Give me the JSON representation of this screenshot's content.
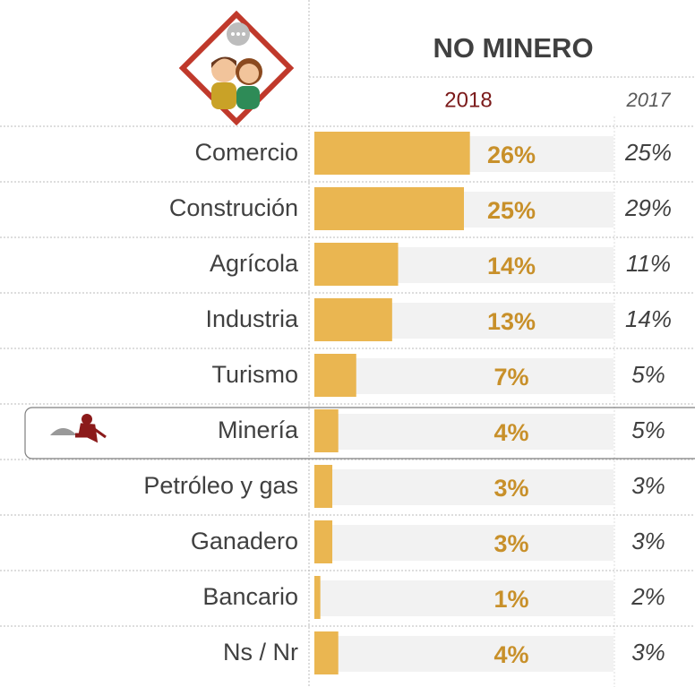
{
  "chart_data": {
    "type": "bar",
    "orientation": "horizontal",
    "title": "NO MINERO",
    "categories": [
      "Comercio",
      "Construción",
      "Agrícola",
      "Industria",
      "Turismo",
      "Minería",
      "Petróleo y gas",
      "Ganadero",
      "Bancario",
      "Ns / Nr"
    ],
    "series": [
      {
        "name": "2018",
        "color": "#eab651",
        "values": [
          26,
          25,
          14,
          13,
          7,
          4,
          3,
          3,
          1,
          4
        ],
        "value_labels": [
          "26%",
          "25%",
          "14%",
          "13%",
          "7%",
          "4%",
          "3%",
          "3%",
          "1%",
          "4%"
        ]
      },
      {
        "name": "2017",
        "values": [
          25,
          29,
          11,
          14,
          5,
          5,
          3,
          3,
          2,
          3
        ],
        "value_labels": [
          "25%",
          "29%",
          "11%",
          "14%",
          "5%",
          "5%",
          "3%",
          "3%",
          "2%",
          "3%"
        ]
      }
    ],
    "xlim": [
      0,
      50
    ]
  }
}
